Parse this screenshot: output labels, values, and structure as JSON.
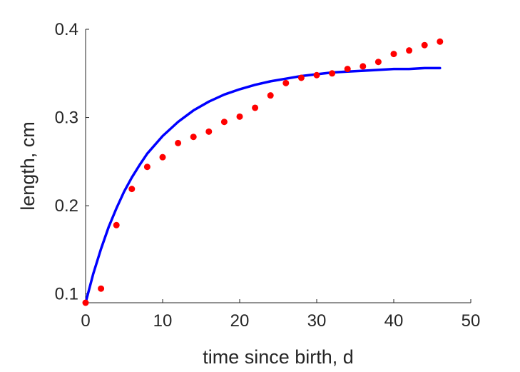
{
  "chart_data": {
    "type": "scatter",
    "title": "",
    "xlabel": "time since birth, d",
    "ylabel": "length, cm",
    "xlim": [
      0,
      50
    ],
    "ylim": [
      0.09,
      0.4
    ],
    "xticks": [
      0,
      10,
      20,
      30,
      40,
      50
    ],
    "yticks": [
      0.1,
      0.2,
      0.3,
      0.4
    ],
    "xtick_labels": [
      "0",
      "10",
      "20",
      "30",
      "40",
      "50"
    ],
    "ytick_labels": [
      "0.1",
      "0.2",
      "0.3",
      "0.4"
    ],
    "grid": false,
    "legend": "none",
    "series": [
      {
        "kind": "points",
        "color": "#ff0000",
        "x": [
          0,
          2,
          4,
          6,
          8,
          10,
          12,
          14,
          16,
          18,
          20,
          22,
          24,
          26,
          28,
          30,
          32,
          34,
          36,
          38,
          40,
          42,
          44,
          46
        ],
        "y": [
          0.09,
          0.106,
          0.178,
          0.219,
          0.244,
          0.255,
          0.271,
          0.278,
          0.284,
          0.295,
          0.301,
          0.311,
          0.325,
          0.339,
          0.345,
          0.348,
          0.35,
          0.355,
          0.358,
          0.363,
          0.372,
          0.376,
          0.382,
          0.386
        ]
      },
      {
        "kind": "curve",
        "color": "#0000ff",
        "x": [
          0,
          1,
          2,
          3,
          4,
          5,
          6,
          7,
          8,
          10,
          12,
          14,
          16,
          18,
          20,
          22,
          24,
          26,
          28,
          30,
          32,
          34,
          36,
          38,
          40,
          42,
          44,
          46
        ],
        "y": [
          0.09,
          0.123,
          0.151,
          0.176,
          0.197,
          0.216,
          0.232,
          0.246,
          0.259,
          0.279,
          0.295,
          0.308,
          0.318,
          0.326,
          0.332,
          0.337,
          0.341,
          0.344,
          0.347,
          0.349,
          0.351,
          0.352,
          0.353,
          0.354,
          0.355,
          0.355,
          0.356,
          0.356
        ]
      }
    ]
  }
}
